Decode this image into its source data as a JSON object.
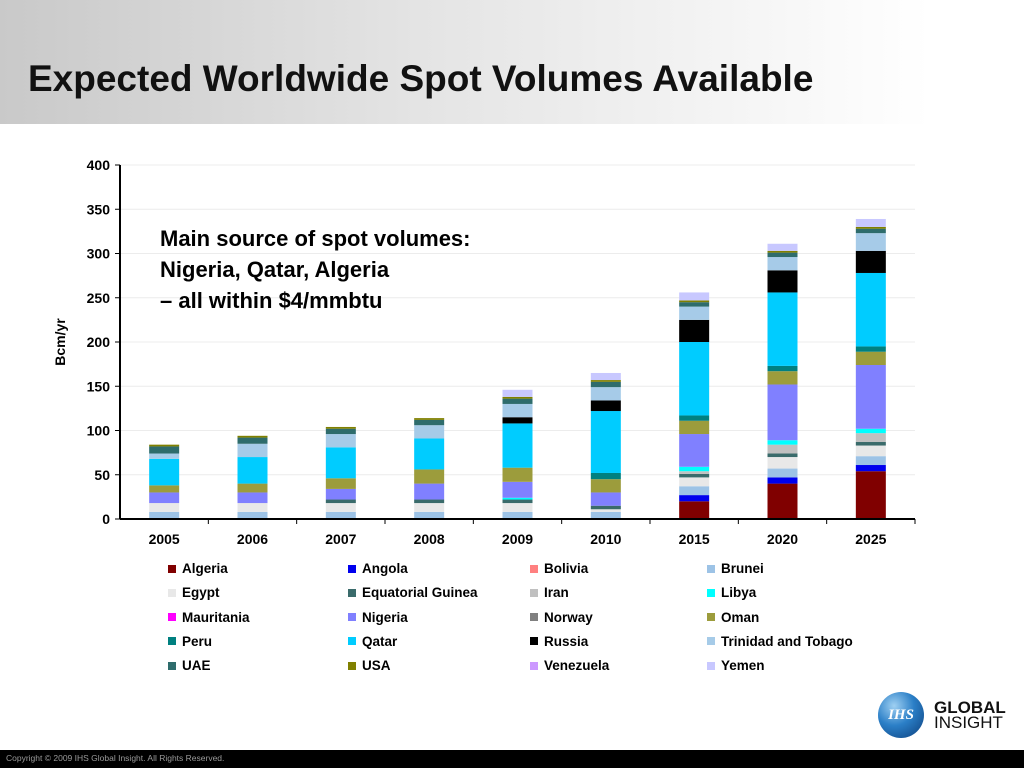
{
  "title": "Expected Worldwide Spot Volumes Available",
  "annotation": {
    "line1": "Main source of spot volumes:",
    "line2": "Nigeria, Qatar, Algeria",
    "line3": "– all within $4/mmbtu"
  },
  "logo": {
    "mark": "IHS",
    "line1": "GLOBAL",
    "line2": "INSIGHT"
  },
  "footer": {
    "copyright": "Copyright © 2009 IHS Global Insight. All Rights Reserved."
  },
  "chart_data": {
    "type": "bar",
    "stacked": true,
    "title": "",
    "xlabel": "",
    "ylabel": "Bcm/yr",
    "ylim": [
      0,
      400
    ],
    "yticks": [
      0,
      50,
      100,
      150,
      200,
      250,
      300,
      350,
      400
    ],
    "grid": true,
    "legend_position": "bottom",
    "categories": [
      "2005",
      "2006",
      "2007",
      "2008",
      "2009",
      "2010",
      "2015",
      "2020",
      "2025"
    ],
    "series": [
      {
        "name": "Algeria",
        "color": "#800000",
        "values": [
          0,
          0,
          0,
          0,
          0,
          0,
          20,
          40,
          54
        ]
      },
      {
        "name": "Angola",
        "color": "#0000ee",
        "values": [
          0,
          0,
          0,
          0,
          0,
          0,
          7,
          7,
          7
        ]
      },
      {
        "name": "Bolivia",
        "color": "#ff8080",
        "values": [
          0,
          0,
          0,
          0,
          0,
          0,
          0,
          0,
          0
        ]
      },
      {
        "name": "Brunei",
        "color": "#9dc3e6",
        "values": [
          8,
          8,
          8,
          8,
          8,
          8,
          10,
          10,
          10
        ]
      },
      {
        "name": "Egypt",
        "color": "#e8e8e8",
        "values": [
          10,
          10,
          10,
          10,
          10,
          3,
          10,
          13,
          12
        ]
      },
      {
        "name": "Equatorial Guinea",
        "color": "#3a6b6b",
        "values": [
          0,
          0,
          4,
          4,
          4,
          4,
          4,
          4,
          4
        ]
      },
      {
        "name": "Iran",
        "color": "#c0c0c0",
        "values": [
          0,
          0,
          0,
          0,
          0,
          0,
          3,
          10,
          10
        ]
      },
      {
        "name": "Libya",
        "color": "#00ffff",
        "values": [
          0,
          0,
          0,
          0,
          2,
          0,
          5,
          5,
          5
        ]
      },
      {
        "name": "Mauritania",
        "color": "#ff00ff",
        "values": [
          0,
          0,
          0,
          0,
          0,
          0,
          0,
          0,
          0
        ]
      },
      {
        "name": "Nigeria",
        "color": "#8080ff",
        "values": [
          12,
          12,
          12,
          18,
          18,
          15,
          37,
          63,
          72
        ]
      },
      {
        "name": "Norway",
        "color": "#808080",
        "values": [
          0,
          0,
          0,
          0,
          0,
          0,
          0,
          0,
          0
        ]
      },
      {
        "name": "Oman",
        "color": "#9c9c3c",
        "values": [
          8,
          10,
          12,
          16,
          16,
          15,
          15,
          15,
          15
        ]
      },
      {
        "name": "Peru",
        "color": "#008080",
        "values": [
          0,
          0,
          0,
          0,
          0,
          7,
          6,
          6,
          6
        ]
      },
      {
        "name": "Qatar",
        "color": "#00ccff",
        "values": [
          30,
          30,
          35,
          35,
          50,
          70,
          83,
          83,
          83
        ]
      },
      {
        "name": "Russia",
        "color": "#000000",
        "values": [
          0,
          0,
          0,
          0,
          7,
          12,
          25,
          25,
          25
        ]
      },
      {
        "name": "Trinidad and Tobago",
        "color": "#a6cbe8",
        "values": [
          6,
          15,
          15,
          15,
          15,
          15,
          15,
          15,
          20
        ]
      },
      {
        "name": "UAE",
        "color": "#2e6c6c",
        "values": [
          8,
          7,
          6,
          6,
          6,
          6,
          5,
          5,
          5
        ]
      },
      {
        "name": "USA",
        "color": "#808000",
        "values": [
          2,
          2,
          2,
          2,
          2,
          2,
          2,
          2,
          2
        ]
      },
      {
        "name": "Venezuela",
        "color": "#cc99ff",
        "values": [
          0,
          0,
          0,
          0,
          0,
          0,
          0,
          0,
          0
        ]
      },
      {
        "name": "Yemen",
        "color": "#c8c8ff",
        "values": [
          0,
          0,
          0,
          0,
          8,
          8,
          9,
          8,
          9
        ]
      }
    ]
  }
}
